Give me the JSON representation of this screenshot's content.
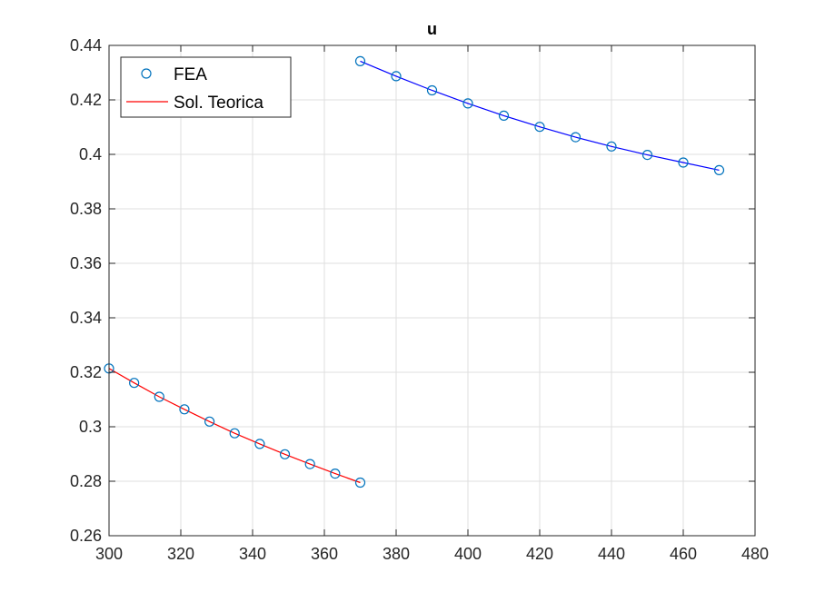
{
  "chart_data": {
    "type": "line",
    "title": "u",
    "xlabel": "",
    "ylabel": "",
    "xlim": [
      300,
      480
    ],
    "ylim": [
      0.26,
      0.44
    ],
    "xticks": [
      300,
      320,
      340,
      360,
      380,
      400,
      420,
      440,
      460,
      480
    ],
    "yticks": [
      0.26,
      0.28,
      0.3,
      0.32,
      0.34,
      0.36,
      0.38,
      0.4,
      0.42,
      0.44
    ],
    "xtick_labels": [
      "300",
      "320",
      "340",
      "360",
      "380",
      "400",
      "420",
      "440",
      "460",
      "480"
    ],
    "ytick_labels": [
      "0.26",
      "0.28",
      "0.3",
      "0.32",
      "0.34",
      "0.36",
      "0.38",
      "0.4",
      "0.42",
      "0.44"
    ],
    "grid": true,
    "legend_position": "top-left",
    "legend": [
      {
        "label": "FEA",
        "marker": "circle",
        "color": "#0072BD"
      },
      {
        "label": "Sol. Teorica",
        "marker": "line",
        "color": "#FF0000"
      }
    ],
    "series": [
      {
        "role": "FEA",
        "style": "markers",
        "color": "#0072BD",
        "x": [
          300,
          307,
          314,
          321,
          328,
          335,
          342,
          349,
          356,
          363,
          370
        ],
        "y": [
          0.3214,
          0.3161,
          0.311,
          0.3064,
          0.3019,
          0.2976,
          0.2937,
          0.2899,
          0.2863,
          0.2828,
          0.2795
        ]
      },
      {
        "role": "FEA",
        "style": "markers",
        "color": "#0072BD",
        "x": [
          370,
          380,
          390,
          400,
          410,
          420,
          430,
          440,
          450,
          460,
          470
        ],
        "y": [
          0.4342,
          0.4287,
          0.4235,
          0.4187,
          0.4142,
          0.4101,
          0.4063,
          0.4029,
          0.3998,
          0.397,
          0.3942
        ]
      },
      {
        "role": "Sol. Teorica",
        "style": "line",
        "color": "#FF0000",
        "x": [
          300,
          307,
          314,
          321,
          328,
          335,
          342,
          349,
          356,
          363,
          370
        ],
        "y": [
          0.3214,
          0.3161,
          0.311,
          0.3064,
          0.3019,
          0.2976,
          0.2937,
          0.2899,
          0.2863,
          0.2828,
          0.2795
        ]
      },
      {
        "role": "Sol. Teorica",
        "style": "line",
        "color": "#0000FF",
        "x": [
          370,
          380,
          390,
          400,
          410,
          420,
          430,
          440,
          450,
          460,
          470
        ],
        "y": [
          0.4342,
          0.4287,
          0.4235,
          0.4187,
          0.4142,
          0.4101,
          0.4063,
          0.4029,
          0.3998,
          0.397,
          0.3942
        ]
      }
    ]
  }
}
